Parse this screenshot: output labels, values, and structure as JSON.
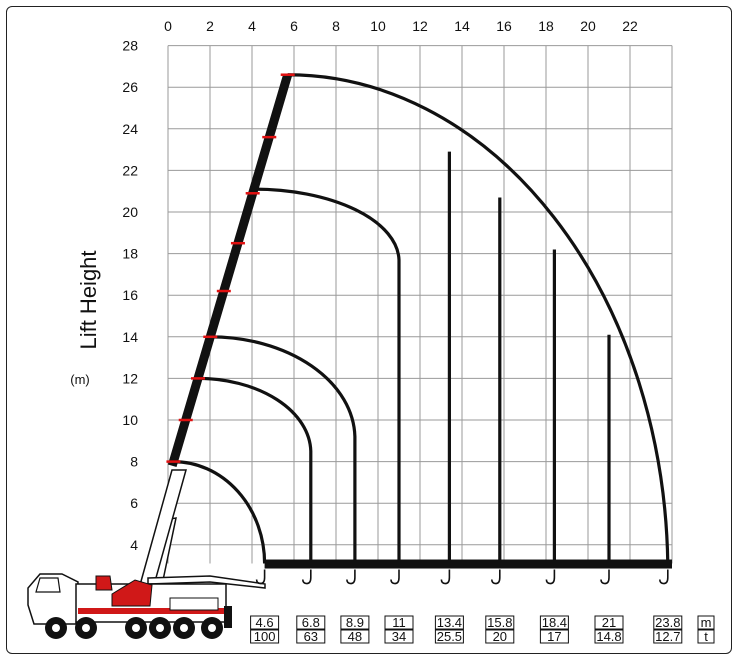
{
  "chart_data": {
    "type": "line",
    "ylabel": "Lift Height",
    "y_unit": "(m)",
    "x_ticks": [
      "0",
      "2",
      "4",
      "6",
      "8",
      "10",
      "12",
      "14",
      "16",
      "18",
      "20",
      "22"
    ],
    "y_ticks": [
      "4",
      "6",
      "8",
      "10",
      "12",
      "14",
      "16",
      "18",
      "20",
      "22",
      "24",
      "26",
      "28"
    ],
    "xlim": [
      0,
      24
    ],
    "ylim": [
      2.5,
      28
    ],
    "grid": true,
    "boom_lengths": [
      8.0,
      12.0,
      14.0,
      21.1,
      26.6
    ],
    "boom_pin": [
      0.2,
      7.8
    ],
    "boom_sections": [
      8,
      10,
      12,
      14,
      16.2,
      18.5,
      20.9,
      23.6,
      26.6
    ],
    "arcs": [
      {
        "boom": 8.0,
        "end_x": 4.6
      },
      {
        "boom": 12.0,
        "end_x": 6.8
      },
      {
        "boom": 14.0,
        "end_x": 8.9
      },
      {
        "boom": 21.1,
        "end_x": 11.0
      },
      {
        "boom": 26.6,
        "end_x": 23.8
      }
    ],
    "radius_lines": [
      {
        "x": 13.4,
        "top": 22.9
      },
      {
        "x": 15.8,
        "top": 20.7
      },
      {
        "x": 18.4,
        "top": 18.2
      },
      {
        "x": 21.0,
        "top": 14.1
      }
    ],
    "ground_y": 3.1,
    "load_table_units": {
      "radius": "m",
      "load": "t"
    },
    "load_table": [
      {
        "radius": "4.6",
        "load": "100"
      },
      {
        "radius": "6.8",
        "load": "63"
      },
      {
        "radius": "8.9",
        "load": "48"
      },
      {
        "radius": "11",
        "load": "34"
      },
      {
        "radius": "13.4",
        "load": "25.5"
      },
      {
        "radius": "15.8",
        "load": "20"
      },
      {
        "radius": "18.4",
        "load": "17"
      },
      {
        "radius": "21",
        "load": "14.8"
      },
      {
        "radius": "23.8",
        "load": "12.7"
      }
    ]
  },
  "colors": {
    "grid": "#9a9a9a",
    "curve": "#111111",
    "boom": "#111111",
    "boom_marks": "#e01010",
    "truck_red": "#d01818",
    "truck_white": "#ffffff"
  }
}
